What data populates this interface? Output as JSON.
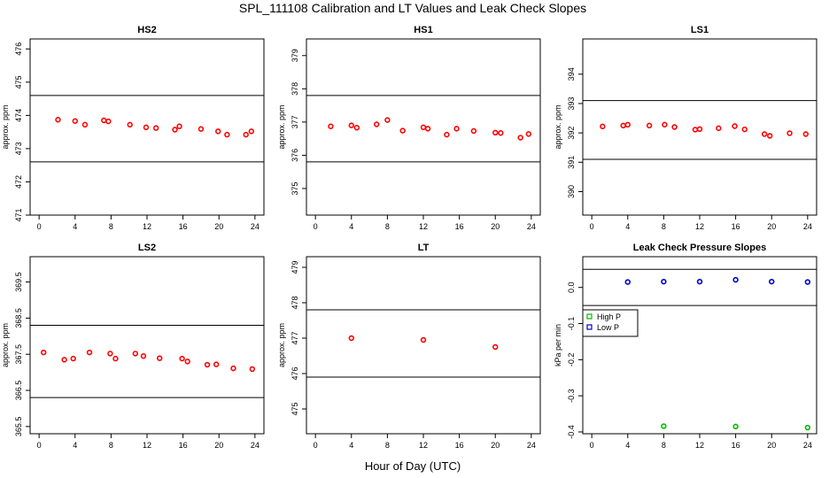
{
  "figure": {
    "title": "SPL_111108  Calibration and LT Values and Leak Check Slopes",
    "xlabel": "Hour of Day (UTC)"
  },
  "chart_data": [
    {
      "type": "scatter",
      "title": "HS2",
      "ylabel": "approx. ppm",
      "xlim": [
        -1,
        25
      ],
      "ylim": [
        471,
        476.3
      ],
      "xticks": [
        0,
        4,
        8,
        12,
        16,
        20,
        24
      ],
      "yticks": [
        471,
        472,
        473,
        474,
        475,
        476
      ],
      "hlines": [
        474.6,
        472.6
      ],
      "series": [
        {
          "color": "#ff0000",
          "marker": "circle",
          "x": [
            2.1,
            4.0,
            5.1,
            7.2,
            7.7,
            10.1,
            11.9,
            13.0,
            15.1,
            15.6,
            18.0,
            19.9,
            20.9,
            23.0,
            23.6
          ],
          "y": [
            473.87,
            473.83,
            473.72,
            473.85,
            473.82,
            473.72,
            473.64,
            473.62,
            473.57,
            473.67,
            473.59,
            473.52,
            473.42,
            473.42,
            473.52
          ]
        }
      ]
    },
    {
      "type": "scatter",
      "title": "HS1",
      "ylabel": "approx. ppm",
      "xlim": [
        -1,
        25
      ],
      "ylim": [
        374.2,
        379.5
      ],
      "xticks": [
        0,
        4,
        8,
        12,
        16,
        20,
        24
      ],
      "yticks": [
        375,
        376,
        377,
        378,
        379
      ],
      "hlines": [
        377.8,
        375.8
      ],
      "series": [
        {
          "color": "#ff0000",
          "marker": "circle",
          "x": [
            1.7,
            4.0,
            4.6,
            6.8,
            8.0,
            9.7,
            12.0,
            12.5,
            14.6,
            15.7,
            17.6,
            20.0,
            20.6,
            22.8,
            23.7
          ],
          "y": [
            376.87,
            376.9,
            376.83,
            376.93,
            377.06,
            376.74,
            376.84,
            376.8,
            376.62,
            376.8,
            376.73,
            376.68,
            376.67,
            376.53,
            376.64
          ]
        }
      ]
    },
    {
      "type": "scatter",
      "title": "LS1",
      "ylabel": "approx. ppm",
      "xlim": [
        -1,
        25
      ],
      "ylim": [
        389.2,
        395.2
      ],
      "xticks": [
        0,
        4,
        8,
        12,
        16,
        20,
        24
      ],
      "yticks": [
        390,
        391,
        392,
        393,
        394
      ],
      "hlines": [
        393.1,
        391.1
      ],
      "series": [
        {
          "color": "#ff0000",
          "marker": "circle",
          "x": [
            1.2,
            3.5,
            4.0,
            6.4,
            8.1,
            9.2,
            11.5,
            12.0,
            14.1,
            15.9,
            17.0,
            19.2,
            19.8,
            22.0,
            23.8
          ],
          "y": [
            392.22,
            392.25,
            392.28,
            392.25,
            392.28,
            392.2,
            392.11,
            392.13,
            392.16,
            392.23,
            392.12,
            391.96,
            391.9,
            391.99,
            391.96
          ]
        }
      ]
    },
    {
      "type": "scatter",
      "title": "LS2",
      "ylabel": "approx. ppm",
      "xlim": [
        -1,
        25
      ],
      "ylim": [
        365.3,
        370.2
      ],
      "xticks": [
        0,
        4,
        8,
        12,
        16,
        20,
        24
      ],
      "yticks": [
        365.5,
        366.5,
        367.5,
        368.5,
        369.5
      ],
      "hlines": [
        368.3,
        366.3
      ],
      "series": [
        {
          "color": "#ff0000",
          "marker": "circle",
          "x": [
            0.5,
            2.8,
            3.8,
            5.6,
            7.9,
            8.5,
            10.7,
            11.6,
            13.4,
            15.9,
            16.5,
            18.7,
            19.7,
            21.6,
            23.7
          ],
          "y": [
            367.55,
            367.35,
            367.38,
            367.55,
            367.52,
            367.38,
            367.52,
            367.45,
            367.39,
            367.38,
            367.3,
            367.21,
            367.22,
            367.11,
            367.09
          ]
        }
      ]
    },
    {
      "type": "scatter",
      "title": "LT",
      "ylabel": "approx. ppm",
      "xlim": [
        -1,
        25
      ],
      "ylim": [
        474.3,
        479.3
      ],
      "xticks": [
        0,
        4,
        8,
        12,
        16,
        20,
        24
      ],
      "yticks": [
        475,
        476,
        477,
        478,
        479
      ],
      "hlines": [
        477.8,
        475.9
      ],
      "series": [
        {
          "color": "#ff0000",
          "marker": "circle",
          "x": [
            4.0,
            12.0,
            20.0
          ],
          "y": [
            477.0,
            476.95,
            476.75
          ]
        }
      ]
    },
    {
      "type": "scatter",
      "title": "Leak Check Pressure Slopes",
      "ylabel": "kPa per min",
      "xlim": [
        -1,
        25
      ],
      "ylim": [
        -0.405,
        0.085
      ],
      "xticks": [
        0,
        4,
        8,
        12,
        16,
        20,
        24
      ],
      "yticks": [
        -0.4,
        -0.3,
        -0.2,
        -0.1,
        0.0
      ],
      "ytick_labels": [
        "-0.4",
        "-0.3",
        "-0.2",
        "-0.1",
        "0.0"
      ],
      "hlines": [
        0.05,
        -0.05
      ],
      "legend": {
        "position": "left",
        "entries": [
          {
            "label": "High P",
            "color": "#00bb00"
          },
          {
            "label": "Low P",
            "color": "#0000cc"
          }
        ]
      },
      "series": [
        {
          "name": "High P",
          "color": "#00bb00",
          "marker": "circle",
          "x": [
            8.0,
            16.0,
            24.0
          ],
          "y": [
            -0.384,
            -0.385,
            -0.388
          ]
        },
        {
          "name": "Low P",
          "color": "#0000cc",
          "marker": "circle",
          "x": [
            4.0,
            8.0,
            12.0,
            16.0,
            20.0,
            24.0
          ],
          "y": [
            0.015,
            0.016,
            0.016,
            0.021,
            0.016,
            0.015
          ]
        }
      ]
    }
  ]
}
